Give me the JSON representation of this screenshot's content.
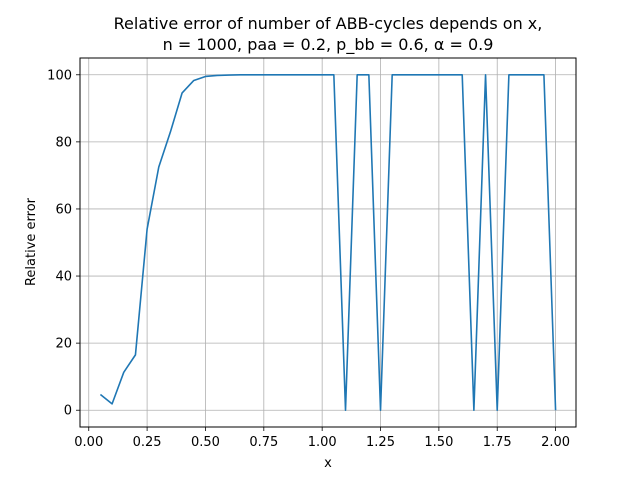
{
  "chart_data": {
    "type": "line",
    "title_line1": "Relative error of number of ABB-cycles depends on x,",
    "title_line2": "n = 1000, paa = 0.2, p_bb = 0.6, α = 0.9",
    "xlabel": "x",
    "ylabel": "Relative error",
    "xlim": [
      -0.0375,
      2.0875
    ],
    "ylim": [
      -5,
      105
    ],
    "grid": true,
    "line_color": "#1f77b4",
    "x_ticks": [
      "0.00",
      "0.25",
      "0.50",
      "0.75",
      "1.00",
      "1.25",
      "1.50",
      "1.75",
      "2.00"
    ],
    "y_ticks": [
      "0",
      "20",
      "40",
      "60",
      "80",
      "100"
    ],
    "series": [
      {
        "x": [
          0.05,
          0.1,
          0.15,
          0.2,
          0.25,
          0.3,
          0.35,
          0.4,
          0.45,
          0.5,
          0.55,
          0.6,
          0.65,
          0.7,
          0.75,
          0.8,
          0.85,
          0.9,
          0.95,
          1.0,
          1.05,
          1.1,
          1.15,
          1.2,
          1.25,
          1.3,
          1.35,
          1.4,
          1.45,
          1.5,
          1.55,
          1.6,
          1.65,
          1.7,
          1.75,
          1.8,
          1.85,
          1.9,
          1.95,
          2.0
        ],
        "y": [
          4.7,
          1.9,
          11.3,
          16.5,
          54.0,
          72.5,
          83.0,
          94.6,
          98.3,
          99.5,
          99.8,
          99.9,
          100,
          100,
          100,
          100,
          100,
          100,
          100,
          100,
          100,
          0,
          100,
          100,
          0,
          100,
          100,
          100,
          100,
          100,
          100,
          100,
          0,
          100,
          0,
          100,
          100,
          100,
          100,
          0
        ]
      }
    ]
  }
}
